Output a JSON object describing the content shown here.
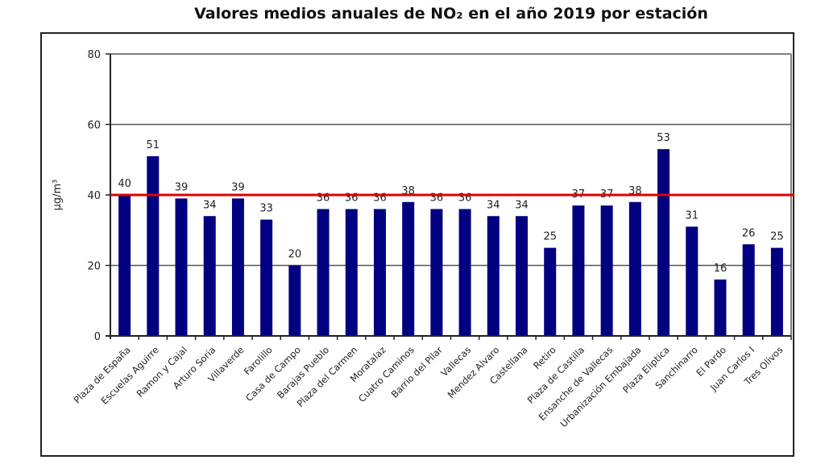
{
  "chart_data": {
    "type": "bar",
    "title": "Valores medios anuales de NO₂ en el año 2019 por estación",
    "xlabel": "",
    "ylabel": "µg/m³",
    "ylim": [
      0,
      80
    ],
    "yticks": [
      0,
      20,
      40,
      60,
      80
    ],
    "grid": true,
    "reference_line": {
      "value": 40,
      "color": "#e00000"
    },
    "bar_color": "#000080",
    "categories": [
      "Plaza de España",
      "Escuelas Aguirre",
      "Ramon y Cajal",
      "Arturo Soria",
      "Villaverde",
      "Farolillo",
      "Casa de Campo",
      "Barajas Pueblo",
      "Plaza del Carmen",
      "Moratalaz",
      "Cuatro Caminos",
      "Barrio del Pilar",
      "Vallecas",
      "Mendez Alvaro",
      "Castellana",
      "Retiro",
      "Plaza de Castilla",
      "Ensanche de Vallecas",
      "Urbanización Embajada",
      "Plaza Eliptica",
      "Sanchinarro",
      "El Pardo",
      "Juan Carlos I",
      "Tres Olivos"
    ],
    "values": [
      40,
      51,
      39,
      34,
      39,
      33,
      20,
      36,
      36,
      36,
      38,
      36,
      36,
      34,
      34,
      25,
      37,
      37,
      38,
      53,
      31,
      16,
      26,
      25
    ]
  }
}
